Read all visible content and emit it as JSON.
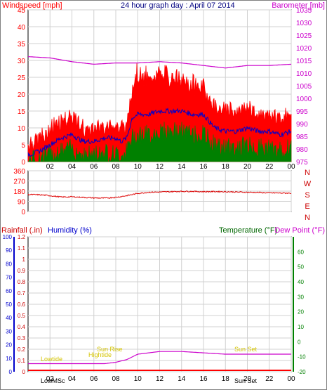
{
  "header": {
    "left_label": "Windspeed [mph]",
    "center_label": "24 hour graph day : April 07 2014",
    "right_label": "Barometer [mb]"
  },
  "colors": {
    "wind": "#ff0000",
    "gust_fill": "#ff0000",
    "avg": "#0000cc",
    "green": "#008000",
    "baro": "#cc00cc",
    "grid": "#d0d0d0",
    "blue_axis": "#0000cc",
    "yellow": "#d4c400"
  },
  "x_ticks": [
    "02",
    "04",
    "06",
    "08",
    "10",
    "12",
    "14",
    "16",
    "18",
    "20",
    "22",
    "00"
  ],
  "bottom_x_ticks": [
    "02",
    "04",
    "06",
    "08",
    "10",
    "12",
    "14",
    "16",
    "18",
    "20",
    "22",
    "00"
  ],
  "direction_labels": [
    "N",
    "W",
    "S",
    "E",
    "N"
  ],
  "lower_header": {
    "rain_label": "Rainfall (.in)",
    "humidity_label": "Humidity (%)",
    "temp_label": "Temperature (°F)",
    "dew_label": "Dew Point (°F)"
  },
  "events": {
    "sunrise": "Sun Rise",
    "sunset": "Sun Set",
    "lowtide": "Lowtide",
    "hightide": "Hightide",
    "low_marker": "LowMSc",
    "sunset_marker": "Sun Set"
  },
  "chart_data": [
    {
      "type": "line",
      "title": "24 hour graph day : April 07 2014",
      "x_unit": "hour",
      "xlim": [
        0,
        24
      ],
      "ylim_left": [
        0,
        45
      ],
      "ylim_right": [
        975,
        1035
      ],
      "ylabel_left": "Windspeed [mph]",
      "ylabel_right": "Barometer [mb]",
      "y_ticks_left": [
        0,
        5,
        10,
        15,
        20,
        25,
        30,
        35,
        40,
        45
      ],
      "y_ticks_right": [
        975,
        980,
        985,
        990,
        995,
        1000,
        1005,
        1010,
        1015,
        1020,
        1025,
        1030,
        1035
      ],
      "series": [
        {
          "name": "Windspeed [mph]",
          "axis": "left",
          "x": [
            0,
            1,
            2,
            3,
            4,
            5,
            6,
            7,
            8,
            8.5,
            9,
            9.5,
            10,
            11,
            12,
            13,
            14,
            15,
            16,
            17,
            18,
            19,
            20,
            21,
            22,
            23,
            24
          ],
          "values": [
            5,
            6,
            8,
            11,
            12,
            9,
            9,
            10,
            10,
            9,
            10,
            22,
            24,
            23,
            25,
            24,
            23,
            22,
            21,
            16,
            15,
            15,
            16,
            14,
            14,
            13,
            14
          ]
        },
        {
          "name": "Wind gust peaks",
          "axis": "left",
          "x": [
            0,
            1,
            2,
            3,
            4,
            5,
            6,
            7,
            8,
            8.5,
            9,
            9.5,
            10,
            11,
            12,
            13,
            14,
            15,
            16,
            17,
            18,
            19,
            20,
            21,
            22,
            23,
            24
          ],
          "values": [
            8,
            10,
            13,
            16,
            17,
            13,
            13,
            14,
            14,
            13,
            14,
            27,
            29,
            28,
            30,
            28,
            27,
            26,
            25,
            20,
            18,
            18,
            19,
            17,
            17,
            16,
            17
          ]
        },
        {
          "name": "Average windspeed",
          "axis": "left",
          "x": [
            0,
            1,
            2,
            3,
            4,
            5,
            6,
            7,
            8,
            8.5,
            9,
            9.5,
            10,
            11,
            12,
            13,
            14,
            15,
            16,
            17,
            18,
            19,
            20,
            21,
            22,
            23,
            24
          ],
          "values": [
            2,
            3,
            5,
            7,
            8,
            6,
            6,
            7,
            7,
            6,
            7,
            13,
            14,
            14,
            15,
            15,
            15,
            14,
            14,
            10,
            9,
            9,
            10,
            9,
            9,
            8,
            9
          ]
        },
        {
          "name": "Green trace",
          "axis": "left",
          "x": [
            0,
            1,
            2,
            3,
            4,
            5,
            6,
            7,
            8,
            8.5,
            9,
            9.5,
            10,
            11,
            12,
            13,
            14,
            15,
            16,
            17,
            18,
            19,
            20,
            21,
            22,
            23,
            24
          ],
          "values": [
            0,
            1,
            2,
            3,
            4,
            2,
            2,
            3,
            2,
            2,
            3,
            7,
            8,
            8,
            9,
            9,
            9,
            8,
            8,
            5,
            4,
            4,
            5,
            4,
            4,
            3,
            4
          ]
        },
        {
          "name": "Barometer [mb]",
          "axis": "right",
          "x": [
            0,
            2,
            4,
            6,
            8,
            10,
            12,
            14,
            16,
            18,
            20,
            22,
            24
          ],
          "values": [
            1016.5,
            1016,
            1014.5,
            1013.5,
            1014,
            1014,
            1014.5,
            1014,
            1013,
            1012,
            1013,
            1013,
            1013.5
          ]
        }
      ]
    },
    {
      "type": "line",
      "title": "",
      "xlim": [
        0,
        24
      ],
      "ylim": [
        0,
        360
      ],
      "y_ticks": [
        0,
        90,
        180,
        270,
        360
      ],
      "series": [
        {
          "name": "Wind direction",
          "x": [
            0,
            1,
            2,
            3,
            4,
            5,
            6,
            7,
            8,
            9,
            10,
            11,
            12,
            13,
            14,
            15,
            16,
            17,
            18,
            19,
            20,
            21,
            22,
            23,
            24
          ],
          "values": [
            150,
            148,
            140,
            128,
            130,
            125,
            120,
            118,
            125,
            140,
            160,
            170,
            172,
            175,
            178,
            178,
            175,
            176,
            175,
            172,
            170,
            168,
            165,
            163,
            162
          ]
        }
      ]
    },
    {
      "type": "line",
      "title": "",
      "xlim": [
        0,
        24
      ],
      "ylim_rain": [
        0,
        1.2
      ],
      "ylim_humidity": [
        0,
        100
      ],
      "ylim_temp": [
        -20,
        70
      ],
      "y_ticks_rain": [
        0,
        0.1,
        0.2,
        0.3,
        0.4,
        0.5,
        0.6,
        0.7,
        0.8,
        0.9,
        1,
        1.1,
        1.2
      ],
      "y_ticks_humidity": [
        0,
        10,
        20,
        30,
        40,
        50,
        60,
        70,
        80,
        90,
        100
      ],
      "y_ticks_temp": [
        -20,
        -10,
        0,
        10,
        20,
        30,
        40,
        50,
        60
      ],
      "series": [
        {
          "name": "Humidity (%)",
          "x": [
            0,
            2,
            4,
            6,
            7,
            8,
            9,
            10,
            11,
            12,
            13,
            14,
            16,
            18,
            20,
            22,
            24
          ],
          "values": [
            6,
            6,
            6,
            6,
            6,
            7,
            9,
            13,
            14,
            15,
            15,
            15,
            14,
            13,
            13,
            13,
            13
          ]
        },
        {
          "name": "Rainfall (.in)",
          "x": [
            0,
            24
          ],
          "values": [
            0,
            0
          ]
        }
      ]
    }
  ]
}
